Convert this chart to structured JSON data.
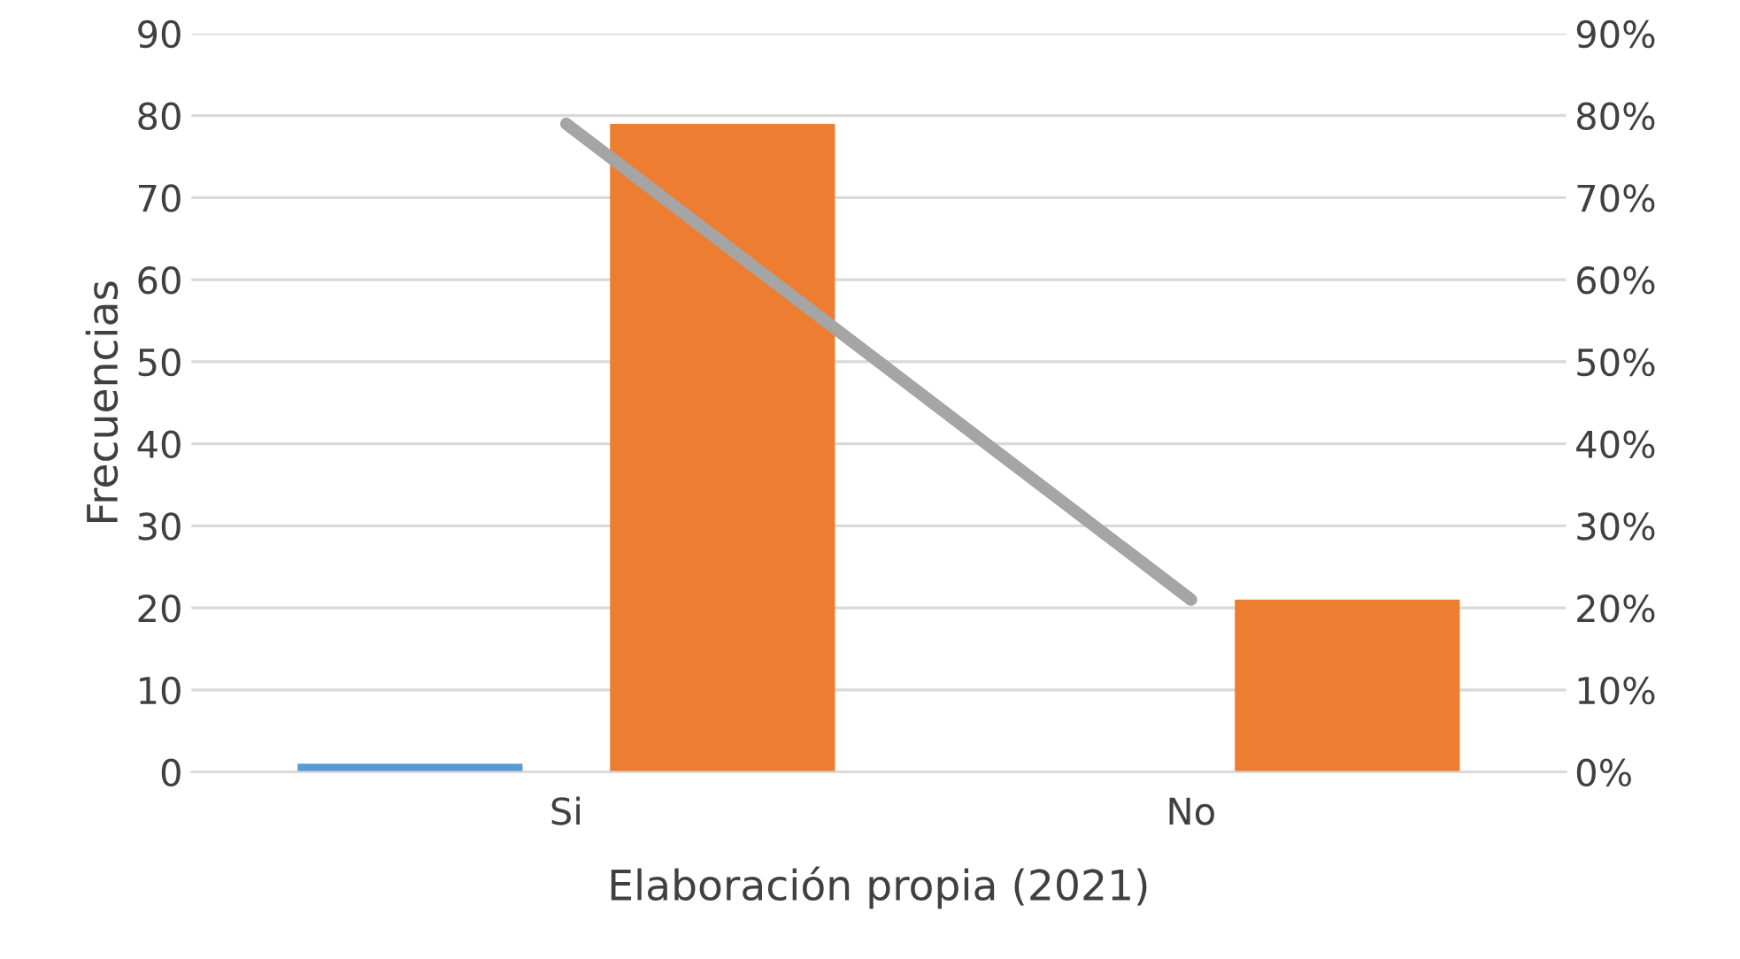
{
  "chart_data": {
    "type": "bar",
    "categories": [
      "Si",
      "No"
    ],
    "series": [
      {
        "color": "#5b9bd5",
        "values": [
          1,
          0
        ]
      },
      {
        "color": "#ed7d31",
        "values": [
          79,
          21
        ]
      },
      {
        "type": "line",
        "axis": "y2",
        "color": "#a5a5a5",
        "values": [
          79,
          21
        ]
      }
    ],
    "ylabel": "Frecuencias",
    "xlabel": "Elaboración propia (2021)",
    "ylim": [
      0,
      90
    ],
    "yticks": [
      0,
      10,
      20,
      30,
      40,
      50,
      60,
      70,
      80,
      90
    ],
    "y2lim": [
      0,
      90
    ],
    "y2ticks": [
      {
        "value": 0,
        "label": "0%"
      },
      {
        "value": 10,
        "label": "10%"
      },
      {
        "value": 20,
        "label": "20%"
      },
      {
        "value": 30,
        "label": "30%"
      },
      {
        "value": 40,
        "label": "40%"
      },
      {
        "value": 50,
        "label": "50%"
      },
      {
        "value": 60,
        "label": "60%"
      },
      {
        "value": 70,
        "label": "70%"
      },
      {
        "value": 80,
        "label": "80%"
      },
      {
        "value": 90,
        "label": "90%"
      }
    ],
    "grid": "y",
    "legend": false
  }
}
